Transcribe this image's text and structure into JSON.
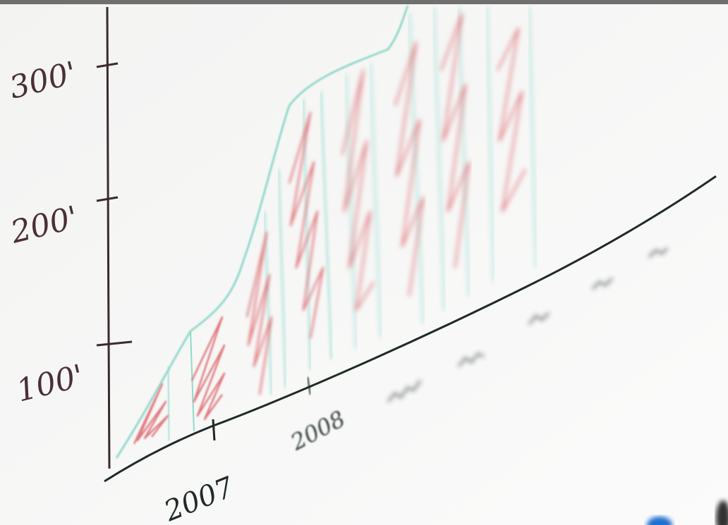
{
  "labels": {
    "y": [
      "300'",
      "200'",
      "100'"
    ],
    "x": [
      "2007",
      "2008"
    ]
  }
}
